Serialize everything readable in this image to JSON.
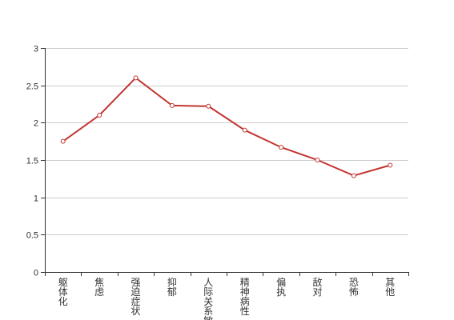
{
  "chart_data": {
    "type": "line",
    "categories": [
      "躯体化",
      "焦虑",
      "强迫症状",
      "抑郁",
      "人际关系敏感",
      "精神病性",
      "偏执",
      "敌对",
      "恐怖",
      "其他"
    ],
    "series": [
      {
        "values": [
          1.75,
          2.1,
          2.6,
          2.23,
          2.22,
          1.9,
          1.67,
          1.5,
          1.29,
          1.43
        ]
      }
    ],
    "ylim": [
      0,
      3
    ],
    "yticks": [
      "0",
      "0.5",
      "1",
      "1.5",
      "2",
      "2.5",
      "3"
    ],
    "title": "",
    "xlabel": "",
    "ylabel": "",
    "grid": "horizontal",
    "colors": {
      "series": "#c23531",
      "grid": "#cccccc",
      "axis": "#333333"
    }
  }
}
